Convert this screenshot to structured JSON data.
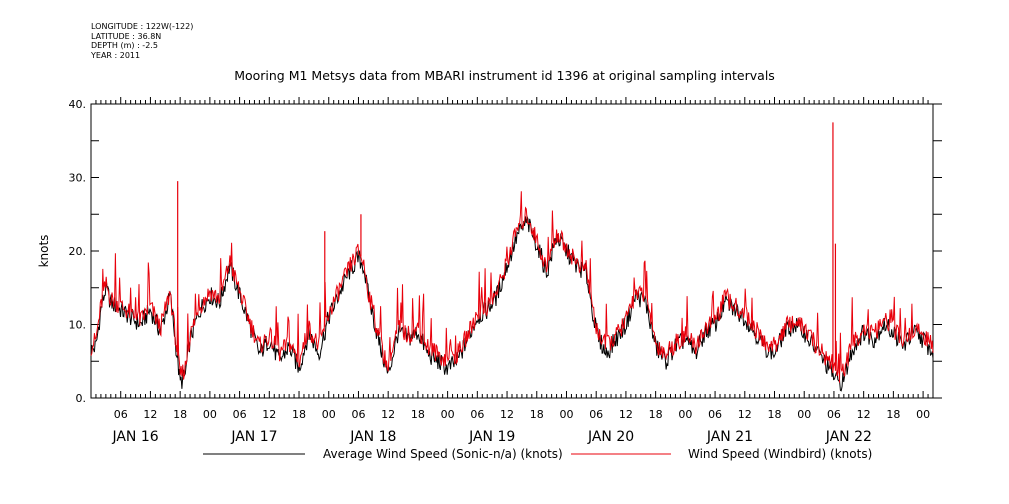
{
  "metadata": {
    "longitude": "LONGITUDE : 122W(-122)",
    "latitude": "LATITUDE : 36.8N",
    "depth": "DEPTH (m) : -2.5",
    "year": "YEAR : 2011"
  },
  "chart_data": {
    "type": "line",
    "title": "Mooring M1 Metsys data from MBARI instrument id 1396 at original sampling intervals",
    "xlabel": "",
    "ylabel": "knots",
    "ylim": [
      0,
      40
    ],
    "yticks": [
      "0.",
      "10.",
      "20.",
      "30.",
      "40."
    ],
    "xlim_hours": [
      0,
      170
    ],
    "x_units": "hours since JAN 16 00:00 2011",
    "xtick_hours": [
      6,
      12,
      18,
      24,
      30,
      36,
      42,
      48,
      54,
      60,
      66,
      72,
      78,
      84,
      90,
      96,
      102,
      108,
      114,
      120,
      126,
      132,
      138,
      144,
      150,
      156,
      162,
      168
    ],
    "xtick_labels": [
      "06",
      "12",
      "18",
      "00",
      "06",
      "12",
      "18",
      "00",
      "06",
      "12",
      "18",
      "00",
      "06",
      "12",
      "18",
      "00",
      "06",
      "12",
      "18",
      "00",
      "06",
      "12",
      "18",
      "00",
      "06",
      "12",
      "18",
      "00"
    ],
    "day_labels": [
      {
        "label": "JAN 16",
        "hour": 9
      },
      {
        "label": "JAN 17",
        "hour": 33
      },
      {
        "label": "JAN 18",
        "hour": 57
      },
      {
        "label": "JAN 19",
        "hour": 81
      },
      {
        "label": "JAN 20",
        "hour": 105
      },
      {
        "label": "JAN 21",
        "hour": 129
      },
      {
        "label": "JAN 22",
        "hour": 153
      }
    ],
    "grid": false,
    "legend_position": "bottom",
    "series": [
      {
        "name": "Average Wind Speed (Sonic-n/a) (knots)",
        "color": "#000000",
        "x": [
          0,
          1,
          2,
          3,
          4,
          6,
          8,
          10,
          12,
          14,
          16,
          17,
          18,
          19,
          20,
          22,
          24,
          26,
          28,
          30,
          32,
          34,
          36,
          38,
          40,
          42,
          44,
          46,
          48,
          50,
          52,
          54,
          55,
          56,
          58,
          60,
          62,
          64,
          66,
          68,
          70,
          72,
          74,
          76,
          78,
          80,
          82,
          84,
          86,
          88,
          90,
          92,
          94,
          96,
          98,
          100,
          102,
          104,
          106,
          108,
          110,
          112,
          114,
          116,
          118,
          120,
          122,
          124,
          126,
          128,
          130,
          132,
          134,
          136,
          138,
          140,
          142,
          144,
          146,
          148,
          150,
          151,
          152,
          153,
          154,
          156,
          158,
          160,
          162,
          164,
          166,
          168,
          170
        ],
        "values": [
          6.5,
          7,
          12,
          15,
          13,
          12,
          11,
          10,
          12,
          9,
          14,
          8,
          2,
          3,
          8,
          12,
          14,
          13,
          18,
          14,
          10,
          6,
          8,
          5,
          7,
          4,
          9,
          6,
          11,
          14,
          17,
          19,
          18,
          14,
          8,
          3,
          9,
          8,
          9,
          6,
          5,
          4,
          5,
          8,
          11,
          12,
          14,
          18,
          22,
          24,
          21,
          17,
          22,
          20,
          18,
          17,
          9,
          6,
          8,
          10,
          14,
          13,
          7,
          5,
          7,
          8,
          6,
          9,
          10,
          13,
          12,
          11,
          9,
          7,
          6,
          9,
          10,
          9,
          7,
          5,
          3,
          2,
          2.5,
          5,
          7,
          9,
          8,
          10,
          9,
          7,
          9,
          8,
          6
        ]
      },
      {
        "name": "Wind Speed (Windbird) (knots)",
        "color": "#e8000b",
        "x": [
          0,
          1,
          2,
          3,
          4,
          6,
          8,
          10,
          12,
          14,
          16,
          17,
          18,
          19,
          20,
          22,
          24,
          26,
          28,
          30,
          32,
          34,
          36,
          38,
          40,
          42,
          44,
          46,
          48,
          50,
          52,
          54,
          55,
          56,
          58,
          60,
          62,
          64,
          66,
          68,
          70,
          72,
          74,
          76,
          78,
          80,
          82,
          84,
          86,
          88,
          90,
          92,
          94,
          96,
          98,
          100,
          102,
          104,
          106,
          108,
          110,
          112,
          114,
          116,
          118,
          120,
          122,
          124,
          126,
          128,
          130,
          132,
          134,
          136,
          138,
          140,
          142,
          144,
          146,
          148,
          150,
          151,
          152,
          153,
          154,
          156,
          158,
          160,
          162,
          164,
          166,
          168,
          170
        ],
        "values": [
          7,
          8,
          12.5,
          15.5,
          13.5,
          12.5,
          11.5,
          10.5,
          12.5,
          9.5,
          14.5,
          8.5,
          3,
          4,
          8.5,
          12.5,
          14.5,
          13.5,
          18.5,
          14.5,
          10.5,
          7,
          8.5,
          6,
          7.5,
          5,
          9.5,
          7,
          11.5,
          14.5,
          17.5,
          20,
          18.5,
          14.5,
          8.5,
          4,
          9.5,
          8.5,
          9.5,
          7,
          6,
          5,
          6,
          8.5,
          11.5,
          12.5,
          14.5,
          18.5,
          23,
          25,
          21.5,
          17.5,
          22.5,
          20.5,
          18.5,
          17.5,
          9.5,
          7,
          8.5,
          10.5,
          14.5,
          13.5,
          7.5,
          6,
          7.5,
          8.5,
          7,
          9.5,
          10.5,
          13.5,
          12.5,
          11.5,
          9.5,
          7.5,
          7,
          9.5,
          10.5,
          9.5,
          7.5,
          6,
          4,
          3,
          3.5,
          6,
          7.5,
          9.5,
          8.5,
          10.5,
          9.5,
          7.5,
          9.5,
          8.5,
          7
        ],
        "spikes": [
          [
            17.5,
            29.5
          ],
          [
            47.2,
            22.7
          ],
          [
            54.5,
            25
          ],
          [
            149.8,
            37.5
          ],
          [
            150.3,
            21
          ]
        ]
      }
    ]
  }
}
